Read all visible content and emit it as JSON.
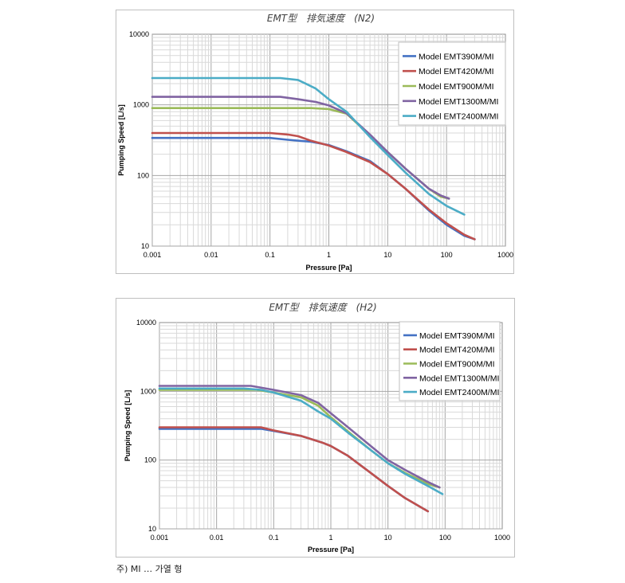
{
  "chart_data": [
    {
      "type": "line",
      "title": "EMT型　排気速度　(N2)",
      "xlabel": "Pressure [Pa]",
      "ylabel": "Pumping Speed [L/s]",
      "x_scale": "log",
      "y_scale": "log",
      "xlim": [
        0.001,
        1000
      ],
      "ylim": [
        10,
        10000
      ],
      "x_ticks": [
        "0.001",
        "0.01",
        "0.1",
        "1",
        "10",
        "100",
        "1000"
      ],
      "y_ticks": [
        "10",
        "100",
        "1000",
        "10000"
      ],
      "grid": true,
      "legend_position": "top-right",
      "series": [
        {
          "name": "Model EMT390M/MI",
          "color": "#4472c4",
          "x": [
            0.001,
            0.1,
            0.2,
            0.5,
            1,
            2,
            5,
            10,
            20,
            50,
            100,
            200,
            300
          ],
          "y": [
            340,
            340,
            320,
            300,
            270,
            220,
            160,
            105,
            65,
            32,
            20,
            14,
            12.5
          ]
        },
        {
          "name": "Model EMT420M/MI",
          "color": "#c0504d",
          "x": [
            0.001,
            0.1,
            0.2,
            0.3,
            0.5,
            1,
            2,
            5,
            10,
            20,
            50,
            100,
            200,
            300
          ],
          "y": [
            400,
            400,
            380,
            360,
            310,
            265,
            215,
            155,
            105,
            65,
            33,
            21,
            14.5,
            12.5
          ]
        },
        {
          "name": "Model EMT900M/MI",
          "color": "#9bbb59",
          "x": [
            0.001,
            0.5,
            1,
            2,
            5,
            10,
            20,
            50,
            80,
            110
          ],
          "y": [
            900,
            900,
            870,
            750,
            370,
            215,
            125,
            65,
            50,
            47
          ]
        },
        {
          "name": "Model EMT1300M/MI",
          "color": "#8064a2",
          "x": [
            0.001,
            0.15,
            0.3,
            0.6,
            1,
            2,
            5,
            10,
            20,
            50,
            80,
            110
          ],
          "y": [
            1300,
            1300,
            1200,
            1100,
            980,
            760,
            380,
            215,
            125,
            65,
            52,
            47
          ]
        },
        {
          "name": "Model EMT2400M/MI",
          "color": "#4bacc6",
          "x": [
            0.001,
            0.15,
            0.3,
            0.6,
            1,
            2,
            5,
            10,
            20,
            50,
            100,
            200
          ],
          "y": [
            2400,
            2400,
            2250,
            1700,
            1200,
            800,
            350,
            195,
            110,
            55,
            37,
            28
          ]
        }
      ]
    },
    {
      "type": "line",
      "title": "EMT型　排気速度　(H2)",
      "xlabel": "Pressure [Pa]",
      "ylabel": "Pumping Speed [L/s]",
      "x_scale": "log",
      "y_scale": "log",
      "xlim": [
        0.001,
        1000
      ],
      "ylim": [
        10,
        10000
      ],
      "x_ticks": [
        "0.001",
        "0.01",
        "0.1",
        "1",
        "10",
        "100",
        "1000"
      ],
      "y_ticks": [
        "10",
        "100",
        "1000",
        "10000"
      ],
      "grid": true,
      "legend_position": "top-right",
      "series": [
        {
          "name": "Model EMT390M/MI",
          "color": "#4472c4",
          "x": [
            0.001,
            0.06,
            0.1,
            0.3,
            0.7,
            1,
            2,
            5,
            10,
            20,
            50
          ],
          "y": [
            285,
            285,
            265,
            225,
            180,
            160,
            115,
            65,
            42,
            28,
            18
          ]
        },
        {
          "name": "Model EMT420M/MI",
          "color": "#c0504d",
          "x": [
            0.001,
            0.06,
            0.1,
            0.3,
            0.7,
            1,
            2,
            5,
            10,
            20,
            50
          ],
          "y": [
            300,
            300,
            270,
            225,
            180,
            160,
            115,
            65,
            42,
            28,
            18
          ]
        },
        {
          "name": "Model EMT900M/MI",
          "color": "#9bbb59",
          "x": [
            0.001,
            0.05,
            0.1,
            0.3,
            0.6,
            1,
            2,
            5,
            10,
            20,
            50,
            80
          ],
          "y": [
            1050,
            1050,
            960,
            820,
            620,
            420,
            260,
            140,
            90,
            65,
            45,
            40
          ]
        },
        {
          "name": "Model EMT1300M/MI",
          "color": "#8064a2",
          "x": [
            0.001,
            0.04,
            0.1,
            0.3,
            0.6,
            1,
            2,
            5,
            10,
            20,
            50,
            80
          ],
          "y": [
            1200,
            1200,
            1050,
            880,
            680,
            480,
            300,
            160,
            100,
            72,
            48,
            40
          ]
        },
        {
          "name": "Model EMT2400M/MI",
          "color": "#4bacc6",
          "x": [
            0.001,
            0.03,
            0.06,
            0.1,
            0.3,
            0.6,
            1,
            2,
            5,
            10,
            20,
            50,
            90
          ],
          "y": [
            1100,
            1100,
            1050,
            960,
            730,
            510,
            400,
            250,
            140,
            90,
            63,
            42,
            32
          ]
        }
      ]
    }
  ],
  "footnote": "주) MI … 가열 형"
}
